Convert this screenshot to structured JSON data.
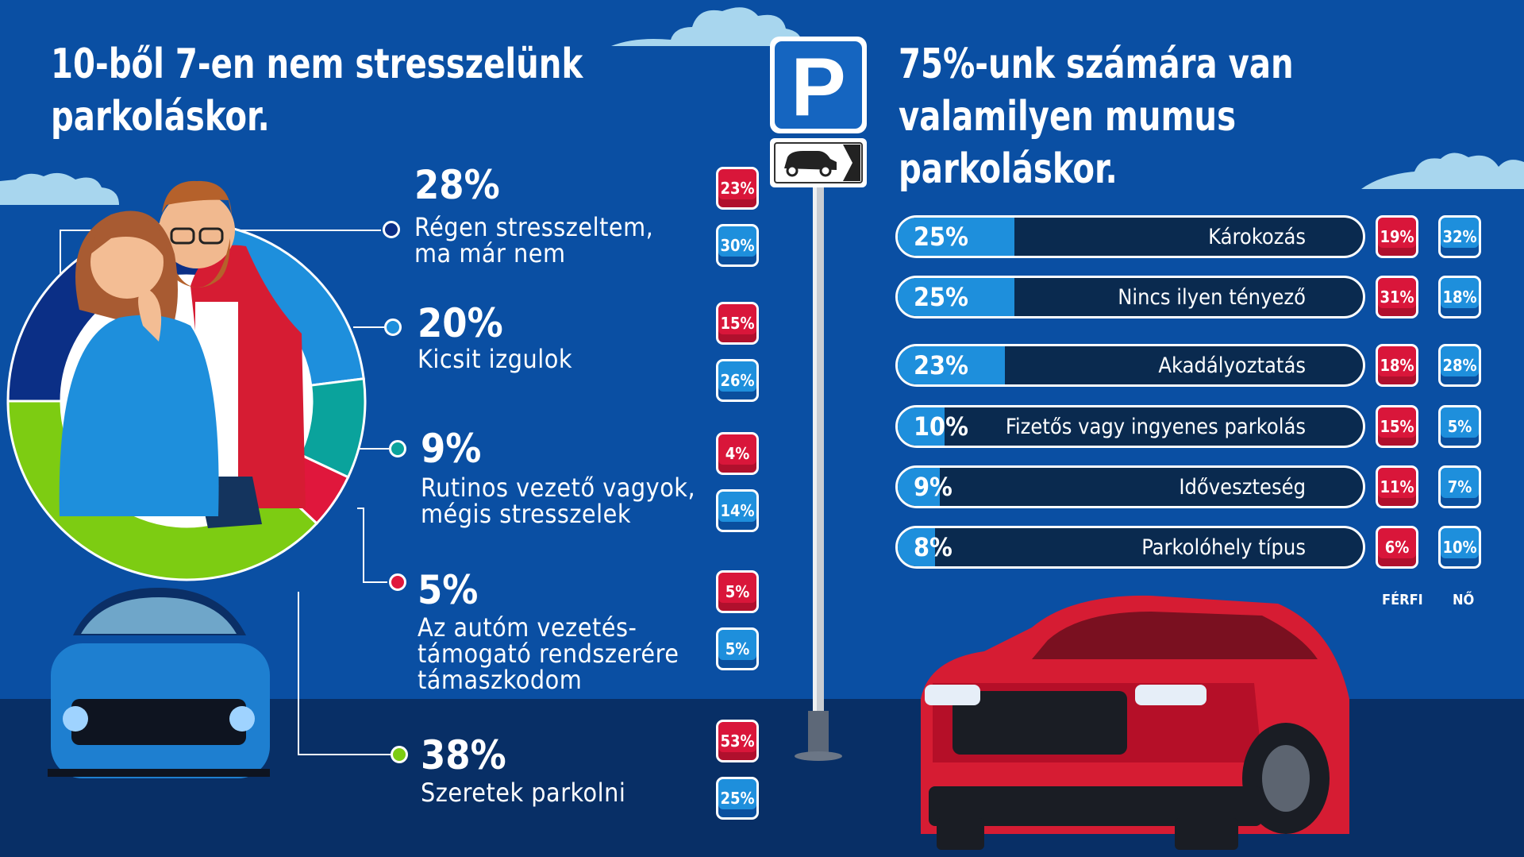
{
  "left": {
    "title": "10-ből 7-en nem stresszelünk\nparkoláskor.",
    "items": [
      {
        "value": "28%",
        "label": "Régen stresszeltem,\nma már nem",
        "male": "23%",
        "female": "30%"
      },
      {
        "value": "20%",
        "label": "Kicsit izgulok",
        "male": "15%",
        "female": "26%"
      },
      {
        "value": "9%",
        "label": "Rutinos vezető vagyok,\nmégis stresszelek",
        "male": "4%",
        "female": "14%"
      },
      {
        "value": "5%",
        "label": "Az autóm vezetés-\ntámogató rendszerére\ntámaszkodom",
        "male": "5%",
        "female": "5%"
      },
      {
        "value": "38%",
        "label": "Szeretek parkolni",
        "male": "53%",
        "female": "25%"
      }
    ]
  },
  "right": {
    "title": "75%-unk számára van\nvalamilyen mumus parkoláskor.",
    "items": [
      {
        "value": "25%",
        "label": "Károkozás",
        "male": "19%",
        "female": "32%"
      },
      {
        "value": "25%",
        "label": "Nincs ilyen tényező",
        "male": "31%",
        "female": "18%"
      },
      {
        "value": "23%",
        "label": "Akadályoztatás",
        "male": "18%",
        "female": "28%"
      },
      {
        "value": "10%",
        "label": "Fizetős vagy ingyenes parkolás",
        "male": "15%",
        "female": "5%"
      },
      {
        "value": "9%",
        "label": "Időveszteség",
        "male": "11%",
        "female": "7%"
      },
      {
        "value": "8%",
        "label": "Parkolóhely típus",
        "male": "6%",
        "female": "10%"
      }
    ],
    "male_label": "FÉRFI",
    "female_label": "NŐ"
  },
  "sign": {
    "letter": "P"
  },
  "colors": {
    "background": "#0a4fa3",
    "male": "#d9163a",
    "female": "#1e8fdc",
    "donut": [
      "#0b2f86",
      "#1e8fdc",
      "#0aa39c",
      "#e0173c",
      "#7dcc12"
    ]
  },
  "chart_data": [
    {
      "type": "pie",
      "title": "10-ből 7-en nem stresszelünk parkoláskor.",
      "categories": [
        "Régen stresszeltem, ma már nem",
        "Kicsit izgulok",
        "Rutinos vezető vagyok, mégis stresszelek",
        "Az autóm vezetéstámogató rendszerére támaszkodom",
        "Szeretek parkolni"
      ],
      "values": [
        28,
        20,
        9,
        5,
        38
      ],
      "series": [
        {
          "name": "FÉRFI",
          "values": [
            23,
            15,
            4,
            5,
            53
          ]
        },
        {
          "name": "NŐ",
          "values": [
            30,
            26,
            14,
            5,
            25
          ]
        }
      ]
    },
    {
      "type": "bar",
      "title": "75%-unk számára van valamilyen mumus parkoláskor.",
      "categories": [
        "Károkozás",
        "Nincs ilyen tényező",
        "Akadályoztatás",
        "Fizetős vagy ingyenes parkolás",
        "Időveszteség",
        "Parkolóhely típus"
      ],
      "values": [
        25,
        25,
        23,
        10,
        9,
        8
      ],
      "series": [
        {
          "name": "FÉRFI",
          "values": [
            19,
            31,
            18,
            15,
            11,
            6
          ]
        },
        {
          "name": "NŐ",
          "values": [
            32,
            18,
            28,
            5,
            7,
            10
          ]
        }
      ],
      "ylim": [
        0,
        100
      ]
    }
  ]
}
